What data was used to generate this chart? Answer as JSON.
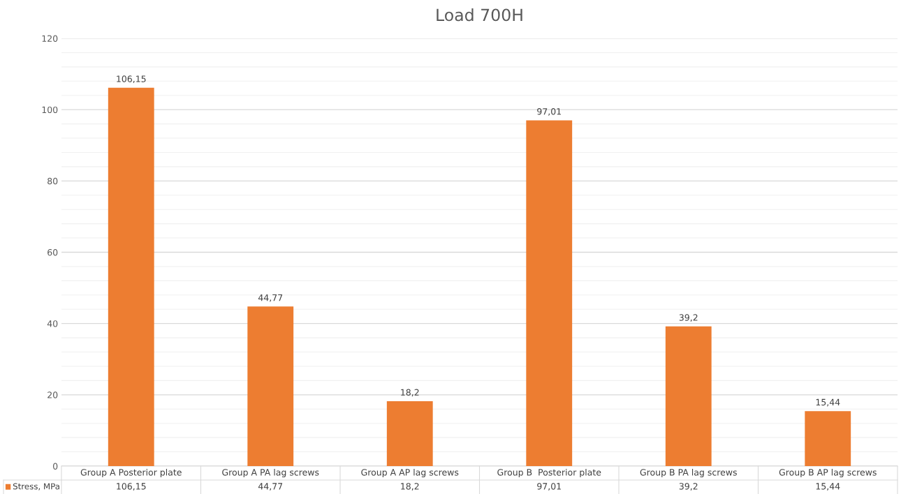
{
  "chart_data": {
    "type": "bar",
    "title": "Load 700H",
    "categories": [
      "Group A Posterior plate",
      "Group A PA lag screws",
      "Group A AP lag screws",
      "Group B  Posterior plate",
      "Group B PA lag screws",
      "Group B AP lag screws"
    ],
    "series": [
      {
        "name": "Stress, MPa",
        "color": "#ed7d31",
        "values": [
          106.15,
          44.77,
          18.2,
          97.01,
          39.2,
          15.44
        ],
        "value_labels": [
          "106,15",
          "44,77",
          "18,2",
          "97,01",
          "39,2",
          "15,44"
        ]
      }
    ],
    "ylim": [
      0,
      120
    ],
    "yticks": [
      0,
      20,
      40,
      60,
      80,
      100,
      120
    ],
    "grid": "y",
    "legend": "bottom"
  }
}
